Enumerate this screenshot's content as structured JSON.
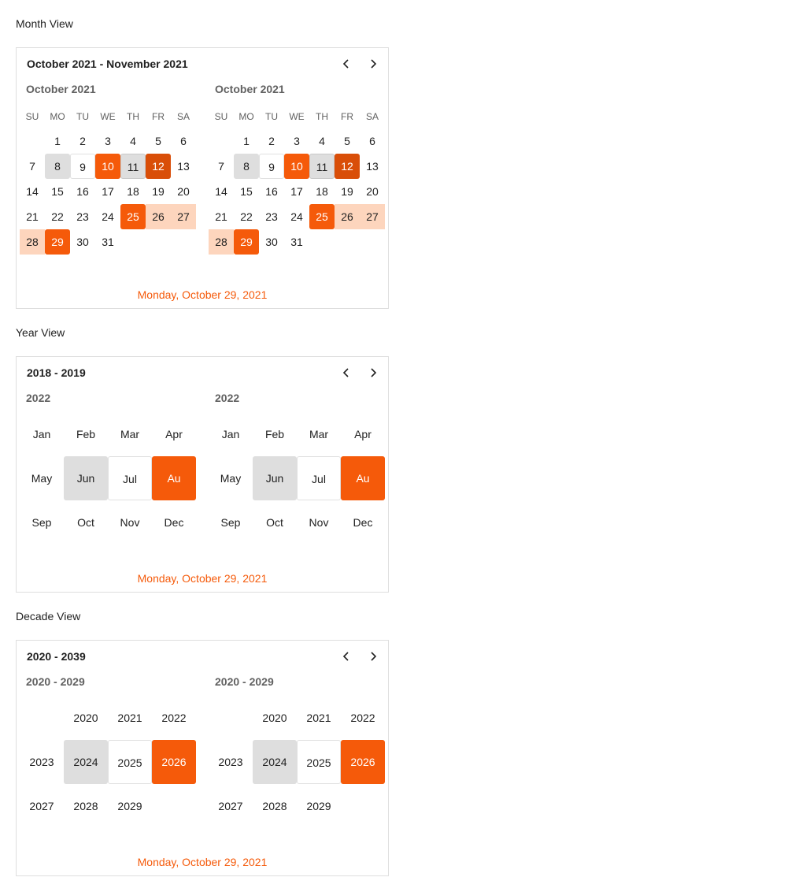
{
  "colors": {
    "accent": "#f55a0a",
    "range": "#fdd5bd",
    "hover": "#dedede",
    "text": "#212121",
    "muted": "#616161"
  },
  "icons": {
    "prev": "chevron-left-icon",
    "next": "chevron-right-icon"
  },
  "month_view": {
    "label": "Month View",
    "header_title": "October 2021 - November 2021",
    "today": "Monday, October 29, 2021",
    "weekdays": [
      "SU",
      "MO",
      "TU",
      "WE",
      "TH",
      "FR",
      "SA"
    ],
    "panels": [
      {
        "title": "October 2021",
        "weeks": [
          [
            {
              "d": ""
            },
            {
              "d": "1"
            },
            {
              "d": "2"
            },
            {
              "d": "3"
            },
            {
              "d": "4"
            },
            {
              "d": "5"
            },
            {
              "d": "6"
            }
          ],
          [
            {
              "d": "7"
            },
            {
              "d": "8",
              "s": "hover"
            },
            {
              "d": "9",
              "s": "focus"
            },
            {
              "d": "10",
              "s": "sel"
            },
            {
              "d": "11",
              "s": "hover-focus"
            },
            {
              "d": "12",
              "s": "sel-focus"
            },
            {
              "d": "13"
            }
          ],
          [
            {
              "d": "14"
            },
            {
              "d": "15"
            },
            {
              "d": "16"
            },
            {
              "d": "17"
            },
            {
              "d": "18"
            },
            {
              "d": "19"
            },
            {
              "d": "20"
            }
          ],
          [
            {
              "d": "21"
            },
            {
              "d": "22"
            },
            {
              "d": "23"
            },
            {
              "d": "24"
            },
            {
              "d": "25",
              "s": "sel"
            },
            {
              "d": "26",
              "s": "range"
            },
            {
              "d": "27",
              "s": "range"
            }
          ],
          [
            {
              "d": "28",
              "s": "range"
            },
            {
              "d": "29",
              "s": "sel"
            },
            {
              "d": "30"
            },
            {
              "d": "31"
            },
            {
              "d": ""
            },
            {
              "d": ""
            },
            {
              "d": ""
            }
          ]
        ]
      },
      {
        "title": "October 2021",
        "weeks": [
          [
            {
              "d": ""
            },
            {
              "d": "1"
            },
            {
              "d": "2"
            },
            {
              "d": "3"
            },
            {
              "d": "4"
            },
            {
              "d": "5"
            },
            {
              "d": "6"
            }
          ],
          [
            {
              "d": "7"
            },
            {
              "d": "8",
              "s": "hover"
            },
            {
              "d": "9",
              "s": "focus"
            },
            {
              "d": "10",
              "s": "sel"
            },
            {
              "d": "11",
              "s": "hover-focus"
            },
            {
              "d": "12",
              "s": "sel-focus"
            },
            {
              "d": "13"
            }
          ],
          [
            {
              "d": "14"
            },
            {
              "d": "15"
            },
            {
              "d": "16"
            },
            {
              "d": "17"
            },
            {
              "d": "18"
            },
            {
              "d": "19"
            },
            {
              "d": "20"
            }
          ],
          [
            {
              "d": "21"
            },
            {
              "d": "22"
            },
            {
              "d": "23"
            },
            {
              "d": "24"
            },
            {
              "d": "25",
              "s": "sel"
            },
            {
              "d": "26",
              "s": "range"
            },
            {
              "d": "27",
              "s": "range"
            }
          ],
          [
            {
              "d": "28",
              "s": "range"
            },
            {
              "d": "29",
              "s": "sel"
            },
            {
              "d": "30"
            },
            {
              "d": "31"
            },
            {
              "d": ""
            },
            {
              "d": ""
            },
            {
              "d": ""
            }
          ]
        ]
      }
    ]
  },
  "year_view": {
    "label": "Year View",
    "header_title": "2018 - 2019",
    "today": "Monday, October 29, 2021",
    "panels": [
      {
        "title": "2022",
        "rows": [
          [
            {
              "t": "Jan"
            },
            {
              "t": "Feb"
            },
            {
              "t": "Mar"
            },
            {
              "t": "Apr"
            }
          ],
          [
            {
              "t": "May"
            },
            {
              "t": "Jun",
              "s": "hover"
            },
            {
              "t": "Jul",
              "s": "focus"
            },
            {
              "t": "Au",
              "s": "sel"
            }
          ],
          [
            {
              "t": "Sep"
            },
            {
              "t": "Oct"
            },
            {
              "t": "Nov"
            },
            {
              "t": "Dec"
            }
          ]
        ]
      },
      {
        "title": "2022",
        "rows": [
          [
            {
              "t": "Jan"
            },
            {
              "t": "Feb"
            },
            {
              "t": "Mar"
            },
            {
              "t": "Apr"
            }
          ],
          [
            {
              "t": "May"
            },
            {
              "t": "Jun",
              "s": "hover"
            },
            {
              "t": "Jul",
              "s": "focus"
            },
            {
              "t": "Au",
              "s": "sel"
            }
          ],
          [
            {
              "t": "Sep"
            },
            {
              "t": "Oct"
            },
            {
              "t": "Nov"
            },
            {
              "t": "Dec"
            }
          ]
        ]
      }
    ]
  },
  "decade_view": {
    "label": "Decade View",
    "header_title": "2020 - 2039",
    "today": "Monday, October 29, 2021",
    "panels": [
      {
        "title": "2020 - 2029",
        "rows": [
          [
            {
              "t": ""
            },
            {
              "t": "2020"
            },
            {
              "t": "2021"
            },
            {
              "t": "2022"
            }
          ],
          [
            {
              "t": "2023"
            },
            {
              "t": "2024",
              "s": "hover"
            },
            {
              "t": "2025",
              "s": "focus"
            },
            {
              "t": "2026",
              "s": "sel"
            }
          ],
          [
            {
              "t": "2027"
            },
            {
              "t": "2028"
            },
            {
              "t": "2029"
            },
            {
              "t": ""
            }
          ]
        ]
      },
      {
        "title": "2020 - 2029",
        "rows": [
          [
            {
              "t": ""
            },
            {
              "t": "2020"
            },
            {
              "t": "2021"
            },
            {
              "t": "2022"
            }
          ],
          [
            {
              "t": "2023"
            },
            {
              "t": "2024",
              "s": "hover"
            },
            {
              "t": "2025",
              "s": "focus"
            },
            {
              "t": "2026",
              "s": "sel"
            }
          ],
          [
            {
              "t": "2027"
            },
            {
              "t": "2028"
            },
            {
              "t": "2029"
            },
            {
              "t": ""
            }
          ]
        ]
      }
    ]
  }
}
